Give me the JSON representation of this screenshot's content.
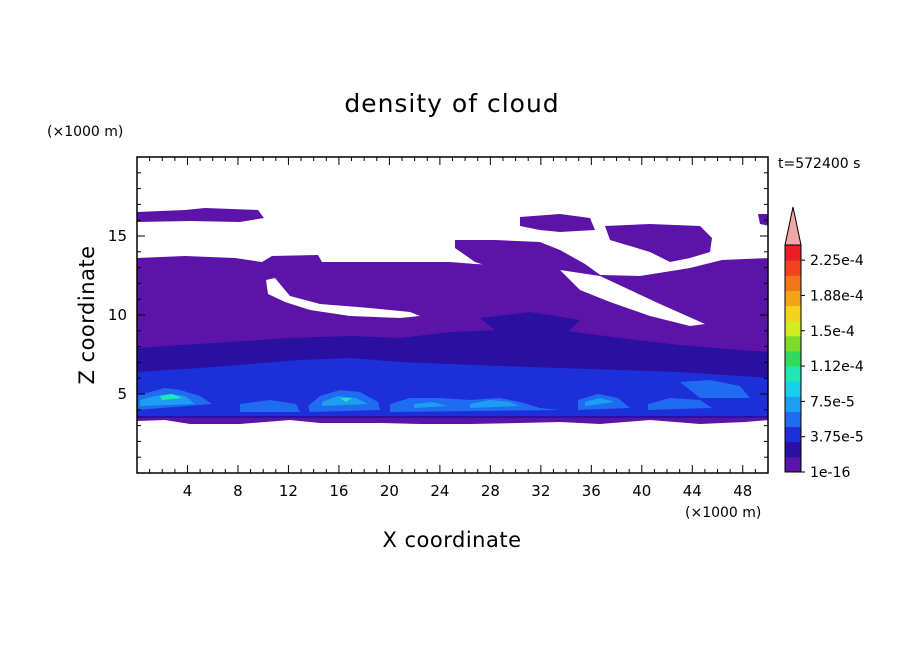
{
  "chart_data": {
    "type": "heatmap",
    "title": "density of cloud",
    "time_label": "t=572400 s",
    "xlabel": "X coordinate",
    "ylabel": "Z coordinate",
    "x_unit": "(×1000 m)",
    "y_unit": "(×1000 m)",
    "xlim": [
      0,
      50
    ],
    "ylim": [
      0,
      20
    ],
    "x_ticks": [
      "4",
      "8",
      "12",
      "16",
      "20",
      "24",
      "28",
      "32",
      "36",
      "40",
      "44",
      "48"
    ],
    "y_ticks": [
      "5",
      "10",
      "15"
    ],
    "colorbar": {
      "labels": [
        "1e-16",
        "3.75e-5",
        "7.5e-5",
        "1.12e-4",
        "1.5e-4",
        "1.88e-4",
        "2.25e-4"
      ],
      "colors": [
        "#5b13a8",
        "#2a10a0",
        "#1c2fd8",
        "#1f6cf0",
        "#1e9ef2",
        "#19d0ea",
        "#22e6b4",
        "#30da5a",
        "#7ddc2a",
        "#d3ec22",
        "#f4d21e",
        "#f5a418",
        "#f3741a",
        "#f2421f",
        "#ea1f25"
      ],
      "extend_color": "#f2a7a7"
    }
  }
}
